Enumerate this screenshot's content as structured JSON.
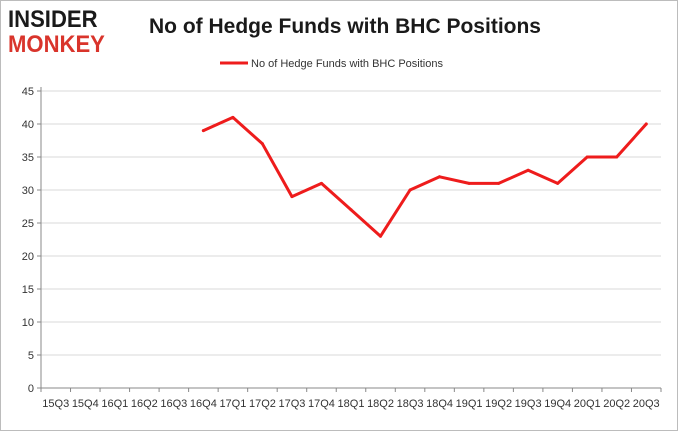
{
  "logo": {
    "line1": "INSIDER",
    "line2": "MONKEY"
  },
  "colors": {
    "series": "#ee1c1c",
    "grid": "#d9d9d9",
    "axis": "#888888",
    "logo_red": "#d9342b"
  },
  "chart_data": {
    "type": "line",
    "title": "No of Hedge Funds with BHC Positions",
    "xlabel": "",
    "ylabel": "",
    "ylim": [
      0,
      45
    ],
    "yticks": [
      0,
      5,
      10,
      15,
      20,
      25,
      30,
      35,
      40,
      45
    ],
    "grid": true,
    "legend_position": "top-center",
    "categories": [
      "15Q3",
      "15Q4",
      "16Q1",
      "16Q2",
      "16Q3",
      "16Q4",
      "17Q1",
      "17Q2",
      "17Q3",
      "17Q4",
      "18Q1",
      "18Q2",
      "18Q3",
      "18Q4",
      "19Q1",
      "19Q2",
      "19Q3",
      "19Q4",
      "20Q1",
      "20Q2",
      "20Q3"
    ],
    "series": [
      {
        "name": "No of Hedge Funds with BHC Positions",
        "color": "#ee1c1c",
        "values": [
          null,
          null,
          null,
          null,
          null,
          39,
          41,
          37,
          29,
          31,
          27,
          23,
          30,
          32,
          31,
          31,
          33,
          31,
          35,
          35,
          40
        ]
      }
    ]
  }
}
